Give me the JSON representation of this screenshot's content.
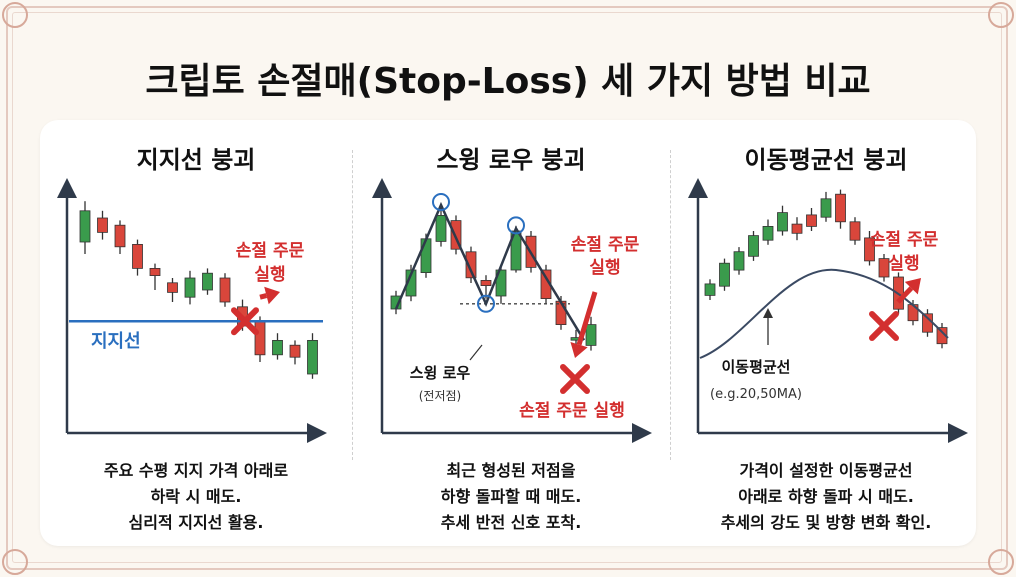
{
  "title": "크립토 손절매(Stop-Loss) 세 가지 방법 비교",
  "colors": {
    "bull": "#3a9b4c",
    "bear": "#d9463b",
    "accent_red": "#d32f2f",
    "support_blue": "#2a6fbf",
    "axis": "#2f3a4a"
  },
  "methods": [
    {
      "title": "지지선 붕괴",
      "support_label": "지지선",
      "callout": [
        "손절 주문",
        "실행"
      ],
      "desc": [
        "주요 수평 지지 가격 아래로",
        "하락 시 매도.",
        "심리적 지지선 활용."
      ]
    },
    {
      "title": "스윙 로우 붕괴",
      "swing_low_label": "스윙 로우",
      "swing_low_sub": "(전저점)",
      "callout": [
        "손절 주문",
        "실행"
      ],
      "callout_bottom": "손절 주문 실행",
      "desc": [
        "최근 형성된 저점을",
        "하향 돌파할 때 매도.",
        "추세 반전 신호 포착."
      ]
    },
    {
      "title": "이동평균선 붕괴",
      "ma_label": "이동평균선",
      "ma_sub": "(e.g.20,50MA)",
      "callout": [
        "손절 주문",
        "실행"
      ],
      "desc": [
        "가격이 설정한 이동평균선",
        "아래로 하향 돌파 시 매도.",
        "추세의 강도 및 방향 변화 확인."
      ]
    }
  ],
  "chart_data": [
    {
      "type": "candlestick",
      "candles": [
        {
          "o": 45,
          "c": 58,
          "h": 62,
          "l": 40
        },
        {
          "o": 55,
          "c": 49,
          "h": 58,
          "l": 46
        },
        {
          "o": 52,
          "c": 43,
          "h": 54,
          "l": 40
        },
        {
          "o": 44,
          "c": 34,
          "h": 46,
          "l": 31
        },
        {
          "o": 34,
          "c": 31,
          "h": 36,
          "l": 25
        },
        {
          "o": 28,
          "c": 24,
          "h": 30,
          "l": 20
        },
        {
          "o": 22,
          "c": 30,
          "h": 33,
          "l": 19
        },
        {
          "o": 25,
          "c": 32,
          "h": 34,
          "l": 23
        },
        {
          "o": 30,
          "c": 20,
          "h": 32,
          "l": 18
        },
        {
          "o": 18,
          "c": 10,
          "h": 21,
          "l": 8
        },
        {
          "o": 12,
          "c": -2,
          "h": 14,
          "l": -5
        },
        {
          "o": -2,
          "c": 4,
          "h": 7,
          "l": -4
        },
        {
          "o": 2,
          "c": -3,
          "h": 4,
          "l": -6
        },
        {
          "o": -10,
          "c": 4,
          "h": 7,
          "l": -12
        }
      ],
      "support": 12
    },
    {
      "type": "candlestick",
      "candles": [
        {
          "o": 10,
          "c": 15,
          "h": 17,
          "l": 8
        },
        {
          "o": 15,
          "c": 25,
          "h": 27,
          "l": 13
        },
        {
          "o": 24,
          "c": 37,
          "h": 39,
          "l": 22
        },
        {
          "o": 36,
          "c": 46,
          "h": 50,
          "l": 34
        },
        {
          "o": 44,
          "c": 33,
          "h": 46,
          "l": 31
        },
        {
          "o": 32,
          "c": 22,
          "h": 34,
          "l": 20
        },
        {
          "o": 21,
          "c": 19,
          "h": 23,
          "l": 14
        },
        {
          "o": 15,
          "c": 25,
          "h": 27,
          "l": 12
        },
        {
          "o": 25,
          "c": 40,
          "h": 42,
          "l": 24
        },
        {
          "o": 38,
          "c": 26,
          "h": 40,
          "l": 24
        },
        {
          "o": 25,
          "c": 14,
          "h": 27,
          "l": 12
        },
        {
          "o": 13,
          "c": 4,
          "h": 15,
          "l": 2
        },
        {
          "o": -2,
          "c": -1,
          "h": 2,
          "l": -4
        },
        {
          "o": -4,
          "c": 4,
          "h": 7,
          "l": -6
        }
      ],
      "swing_low": 12
    },
    {
      "type": "candlestick",
      "candles": [
        {
          "o": 12,
          "c": 17,
          "h": 19,
          "l": 10
        },
        {
          "o": 16,
          "c": 26,
          "h": 28,
          "l": 14
        },
        {
          "o": 23,
          "c": 31,
          "h": 33,
          "l": 21
        },
        {
          "o": 29,
          "c": 38,
          "h": 40,
          "l": 27
        },
        {
          "o": 36,
          "c": 42,
          "h": 45,
          "l": 34
        },
        {
          "o": 40,
          "c": 48,
          "h": 51,
          "l": 38
        },
        {
          "o": 43,
          "c": 39,
          "h": 46,
          "l": 36
        },
        {
          "o": 47,
          "c": 42,
          "h": 50,
          "l": 40
        },
        {
          "o": 46,
          "c": 54,
          "h": 57,
          "l": 44
        },
        {
          "o": 56,
          "c": 44,
          "h": 58,
          "l": 41
        },
        {
          "o": 44,
          "c": 36,
          "h": 46,
          "l": 34
        },
        {
          "o": 37,
          "c": 27,
          "h": 40,
          "l": 25
        },
        {
          "o": 28,
          "c": 20,
          "h": 30,
          "l": 18
        },
        {
          "o": 20,
          "c": 6,
          "h": 22,
          "l": 4
        },
        {
          "o": 8,
          "c": 1,
          "h": 10,
          "l": -1
        },
        {
          "o": 4,
          "c": -4,
          "h": 6,
          "l": -6
        },
        {
          "o": -2,
          "c": -9,
          "h": 0,
          "l": -11
        }
      ]
    }
  ]
}
